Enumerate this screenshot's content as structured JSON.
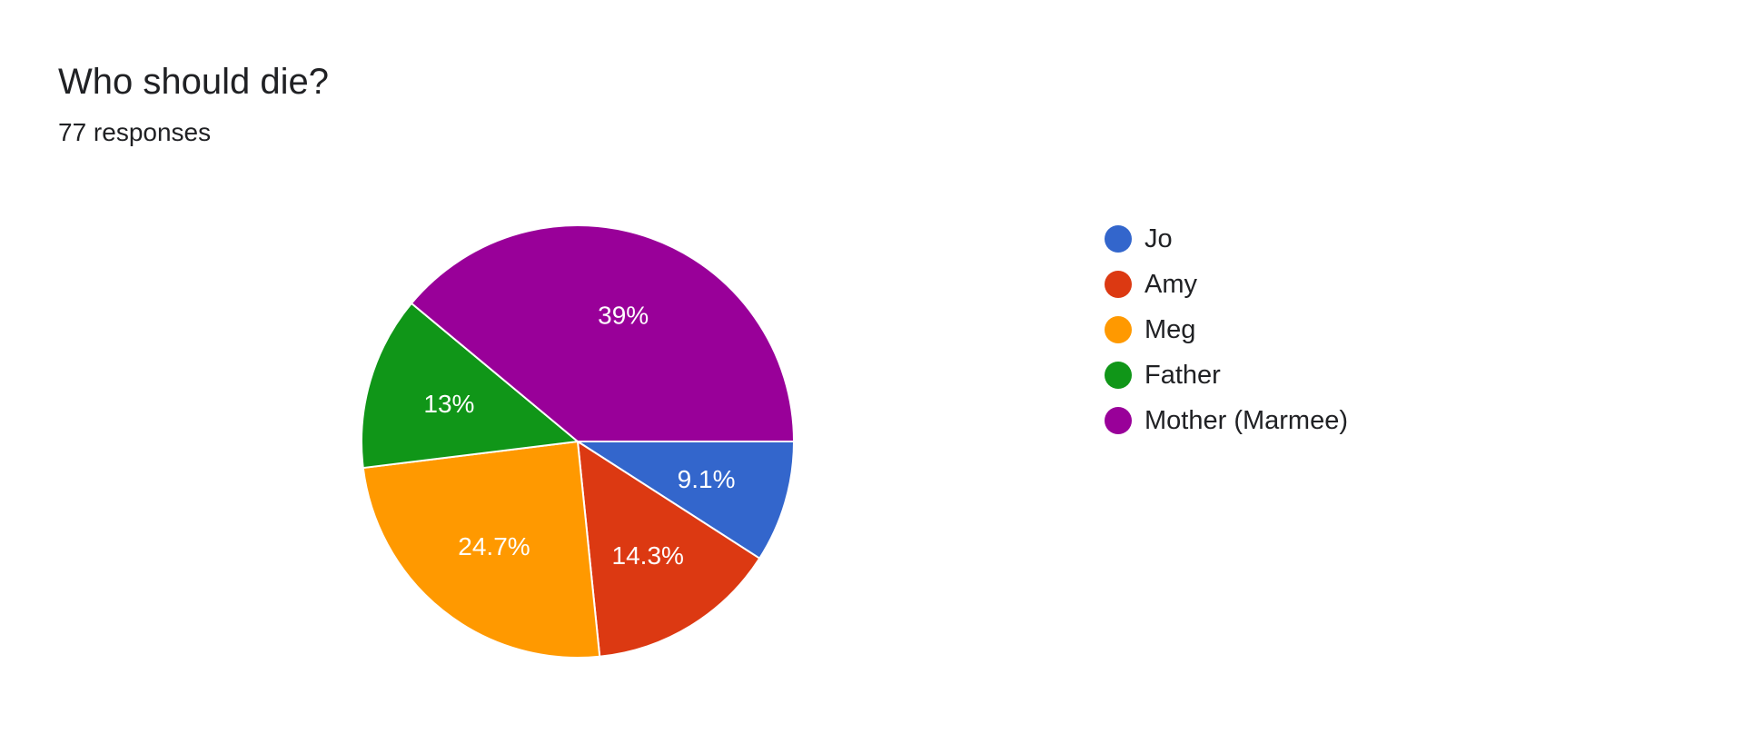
{
  "header": {
    "title": "Who should die?",
    "subtitle": "77 responses"
  },
  "chart_data": {
    "type": "pie",
    "title": "Who should die?",
    "categories": [
      "Jo",
      "Amy",
      "Meg",
      "Father",
      "Mother (Marmee)"
    ],
    "values": [
      9.1,
      14.3,
      24.7,
      13,
      39
    ],
    "labels": [
      "9.1%",
      "14.3%",
      "24.7%",
      "13%",
      "39%"
    ],
    "colors": [
      "#3366cc",
      "#dc3912",
      "#ff9900",
      "#109618",
      "#990099"
    ],
    "legend_position": "right"
  }
}
